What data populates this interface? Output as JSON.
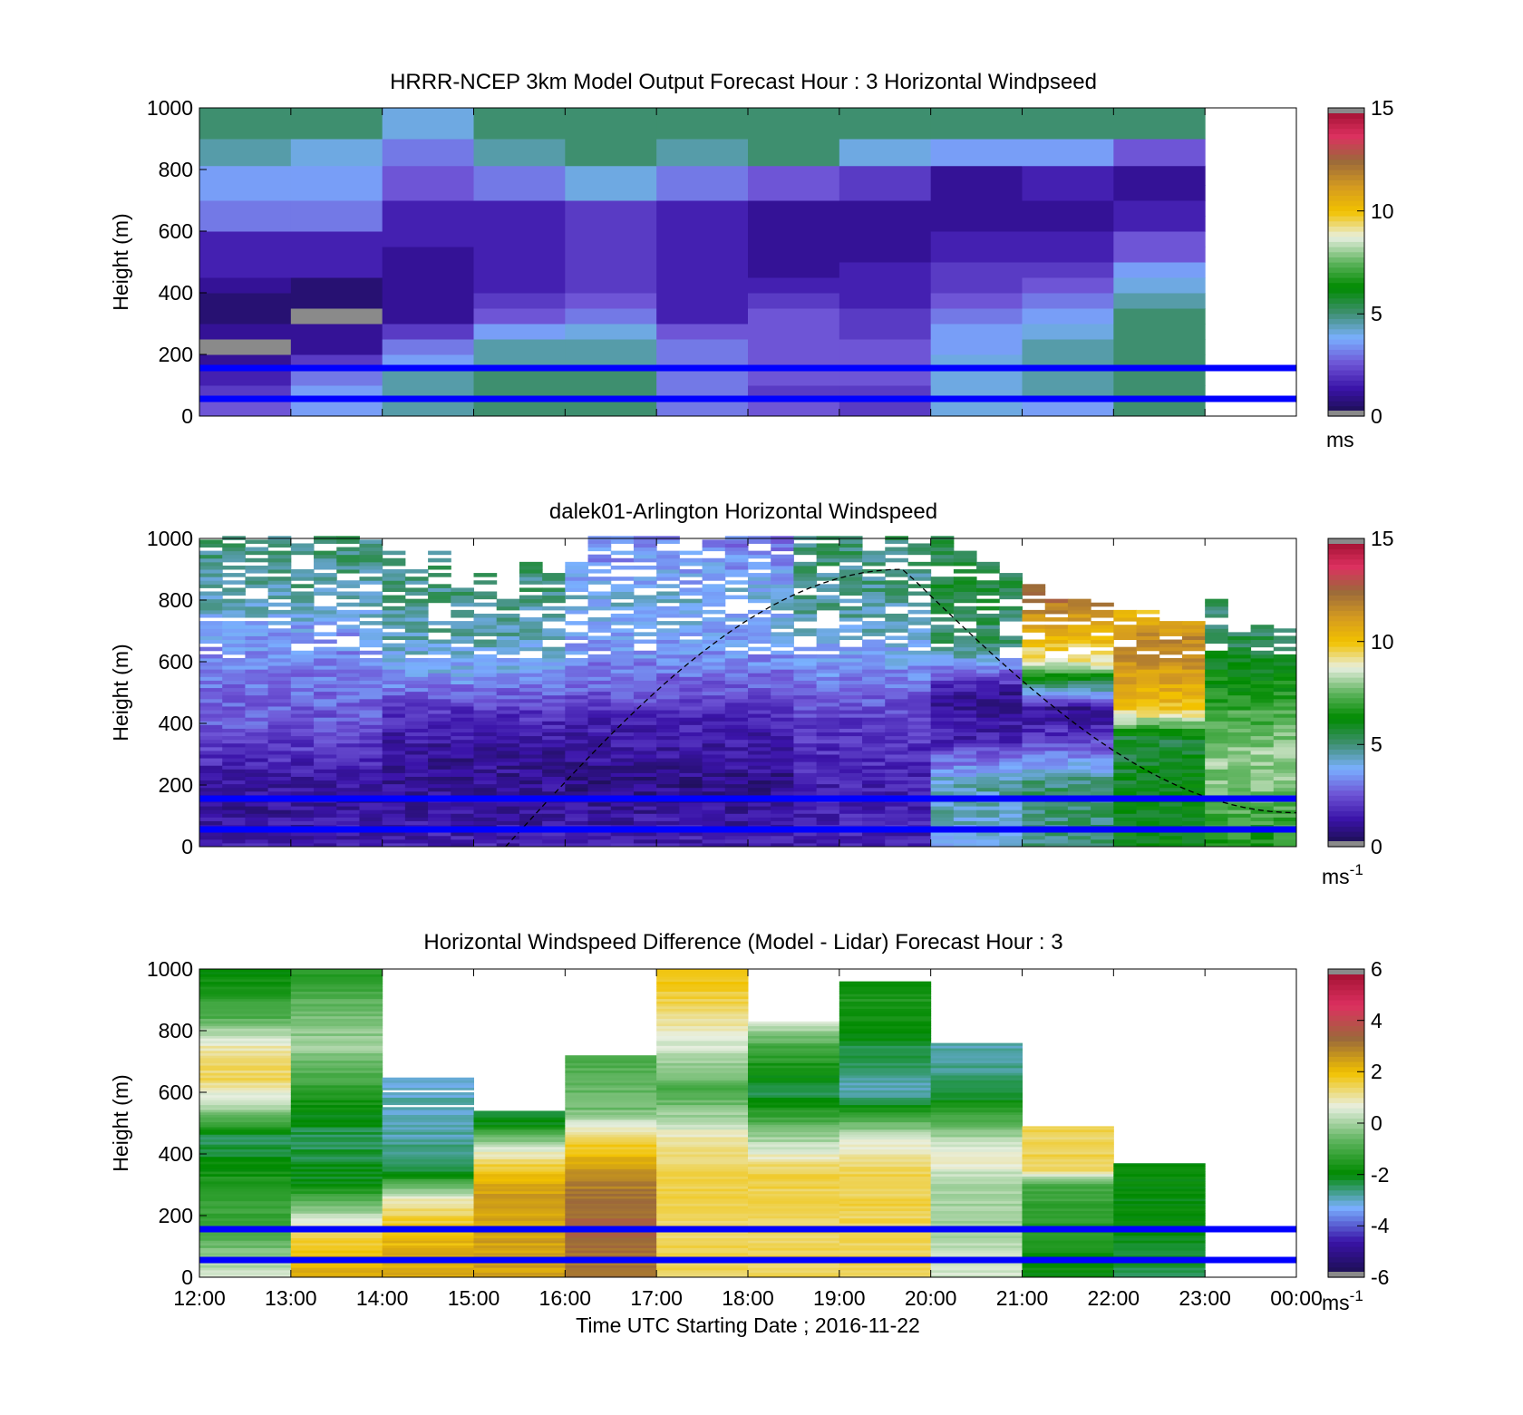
{
  "chart_data": [
    {
      "type": "heatmap",
      "title": "HRRR-NCEP 3km Model Output   Forecast Hour : 3 Horizontal Windpseed",
      "xlabel": "",
      "ylabel": "Height (m)",
      "ylim": [
        0,
        1000
      ],
      "yticks": [
        "0",
        "200",
        "400",
        "600",
        "800",
        "1000"
      ],
      "xlim": [
        12,
        24
      ],
      "x_start": [
        12,
        13,
        14,
        15,
        16,
        17,
        18,
        19,
        20,
        21,
        22
      ],
      "x_width": 1,
      "y_levels": [
        25,
        75,
        125,
        175,
        225,
        275,
        325,
        375,
        425,
        475,
        525,
        575,
        625,
        675,
        725,
        775,
        850,
        950
      ],
      "values": [
        [
          2.5,
          3.5,
          4.5,
          5.0,
          5.0,
          3.0,
          2.5,
          2.0,
          4.0,
          3.5,
          5.0
        ],
        [
          2.0,
          3.5,
          4.5,
          5.0,
          5.0,
          3.0,
          2.0,
          2.0,
          4.0,
          4.5,
          5.0
        ],
        [
          1.5,
          3.0,
          4.5,
          5.0,
          5.0,
          3.0,
          2.5,
          2.5,
          4.0,
          4.5,
          5.0
        ],
        [
          1.0,
          2.0,
          3.5,
          4.5,
          4.5,
          3.0,
          2.5,
          2.5,
          4.0,
          4.5,
          5.0
        ],
        [
          0.0,
          1.0,
          3.0,
          4.5,
          4.5,
          3.0,
          2.5,
          2.5,
          3.5,
          4.5,
          5.0
        ],
        [
          1.0,
          1.0,
          2.0,
          3.5,
          4.0,
          2.5,
          2.5,
          2.0,
          3.5,
          4.0,
          5.0
        ],
        [
          0.5,
          0.0,
          1.0,
          2.5,
          3.0,
          1.5,
          2.5,
          2.0,
          3.0,
          3.5,
          5.0
        ],
        [
          0.5,
          0.5,
          1.0,
          2.0,
          2.5,
          1.5,
          2.0,
          1.5,
          2.5,
          3.0,
          4.5
        ],
        [
          1.0,
          0.5,
          1.0,
          1.5,
          2.0,
          1.5,
          1.5,
          1.5,
          2.0,
          2.5,
          4.0
        ],
        [
          1.5,
          1.5,
          1.0,
          1.5,
          2.0,
          1.5,
          1.0,
          1.5,
          2.0,
          2.0,
          3.5
        ],
        [
          1.5,
          1.5,
          1.0,
          1.5,
          2.0,
          1.5,
          1.0,
          1.0,
          1.5,
          1.5,
          2.5
        ],
        [
          1.5,
          1.5,
          1.5,
          1.5,
          2.0,
          1.5,
          1.0,
          1.0,
          1.5,
          1.5,
          2.5
        ],
        [
          3.0,
          3.0,
          1.5,
          1.5,
          2.0,
          1.5,
          1.0,
          1.0,
          1.0,
          1.0,
          1.5
        ],
        [
          3.0,
          3.0,
          1.5,
          1.5,
          2.0,
          1.5,
          1.0,
          1.0,
          1.0,
          1.0,
          1.5
        ],
        [
          3.5,
          3.5,
          2.5,
          3.0,
          4.0,
          3.0,
          2.5,
          2.0,
          1.0,
          1.5,
          1.0
        ],
        [
          3.5,
          3.5,
          2.5,
          3.0,
          4.0,
          3.0,
          2.5,
          2.0,
          1.0,
          1.5,
          1.0
        ],
        [
          4.5,
          4.0,
          3.0,
          4.5,
          5.0,
          4.5,
          5.0,
          4.0,
          3.5,
          3.5,
          2.5
        ],
        [
          5.0,
          5.0,
          4.0,
          5.0,
          5.0,
          5.0,
          5.0,
          5.0,
          5.0,
          5.0,
          5.0
        ]
      ],
      "colorbar": {
        "min": 0,
        "max": 15,
        "ticks": [
          "0",
          "5",
          "10",
          "15"
        ],
        "label": "ms"
      },
      "hlines": [
        50,
        150
      ],
      "hline_color": "#0000ff",
      "grid": false
    },
    {
      "type": "heatmap",
      "title": "dalek01-Arlington  Horizontal Windspeed",
      "xlabel": "",
      "ylabel": "Height (m)",
      "ylim": [
        0,
        1000
      ],
      "yticks": [
        "0",
        "200",
        "400",
        "600",
        "800",
        "1000"
      ],
      "xlim": [
        12,
        24
      ],
      "columns": 48,
      "x_step_hours": 0.25,
      "bands": [
        {
          "x": [
            12.0,
            14.0
          ],
          "profile": [
            [
              0,
              1.5
            ],
            [
              150,
              1.0
            ],
            [
              250,
              1.5
            ],
            [
              400,
              2.5
            ],
            [
              550,
              3.0
            ],
            [
              700,
              3.5
            ],
            [
              800,
              4.5
            ],
            [
              1000,
              5.0
            ]
          ]
        },
        {
          "x": [
            14.0,
            16.0
          ],
          "profile": [
            [
              0,
              1.5
            ],
            [
              150,
              1.0
            ],
            [
              300,
              1.0
            ],
            [
              450,
              2.0
            ],
            [
              550,
              3.5
            ],
            [
              700,
              4.5
            ],
            [
              900,
              5.0
            ]
          ]
        },
        {
          "x": [
            16.0,
            18.5
          ],
          "profile": [
            [
              0,
              1.5
            ],
            [
              200,
              0.8
            ],
            [
              400,
              1.5
            ],
            [
              500,
              2.5
            ],
            [
              650,
              3.5
            ],
            [
              800,
              4.0
            ],
            [
              1000,
              3.0
            ]
          ]
        },
        {
          "x": [
            18.5,
            20.0
          ],
          "profile": [
            [
              0,
              1.5
            ],
            [
              200,
              1.5
            ],
            [
              400,
              2.0
            ],
            [
              600,
              3.5
            ],
            [
              750,
              4.5
            ],
            [
              950,
              5.0
            ]
          ]
        },
        {
          "x": [
            20.0,
            21.0
          ],
          "profile": [
            [
              0,
              4.0
            ],
            [
              200,
              4.5
            ],
            [
              350,
              1.5
            ],
            [
              500,
              1.0
            ],
            [
              650,
              5.0
            ],
            [
              850,
              5.5
            ]
          ]
        },
        {
          "x": [
            21.0,
            22.0
          ],
          "profile": [
            [
              0,
              5.0
            ],
            [
              200,
              5.0
            ],
            [
              350,
              2.0
            ],
            [
              450,
              1.0
            ],
            [
              600,
              9.0
            ],
            [
              850,
              13.0
            ]
          ]
        },
        {
          "x": [
            22.0,
            23.0
          ],
          "profile": [
            [
              0,
              6.0
            ],
            [
              200,
              6.0
            ],
            [
              350,
              5.5
            ],
            [
              450,
              10.0
            ],
            [
              650,
              12.0
            ],
            [
              850,
              9.0
            ]
          ]
        },
        {
          "x": [
            23.0,
            23.8
          ],
          "profile": [
            [
              0,
              6.5
            ],
            [
              150,
              7.5
            ],
            [
              300,
              8.0
            ],
            [
              450,
              7.0
            ],
            [
              650,
              5.5
            ],
            [
              800,
              5.0
            ]
          ]
        }
      ],
      "column_tops": [
        1000,
        1000,
        1000,
        1000,
        1000,
        1000,
        1000,
        1000,
        950,
        900,
        950,
        850,
        880,
        800,
        920,
        900,
        920,
        1000,
        1000,
        1000,
        1000,
        950,
        1000,
        1000,
        1000,
        1000,
        1000,
        1000,
        1000,
        950,
        1000,
        980,
        1000,
        960,
        920,
        880,
        850,
        820,
        800,
        790,
        780,
        760,
        750,
        730,
        800,
        700,
        720,
        700
      ],
      "arc": {
        "x": [
          15.35,
          19.7,
          24.0
        ],
        "y": [
          0,
          900,
          110
        ],
        "style": "dashed"
      },
      "colorbar": {
        "min": 0,
        "max": 15,
        "ticks": [
          "0",
          "5",
          "10",
          "15"
        ],
        "label": "ms",
        "label_sup": "-1"
      },
      "hlines": [
        50,
        150
      ],
      "hline_color": "#0000ff",
      "grid": false
    },
    {
      "type": "heatmap",
      "title": "Horizontal Windspeed Difference (Model - Lidar) Forecast Hour : 3",
      "xlabel": "Time UTC  Starting Date ; 2016-11-22",
      "ylabel": "Height (m)",
      "ylim": [
        0,
        1000
      ],
      "yticks": [
        "0",
        "200",
        "400",
        "600",
        "800",
        "1000"
      ],
      "xlim": [
        12,
        24
      ],
      "xticks": [
        "12:00",
        "13:00",
        "14:00",
        "15:00",
        "16:00",
        "17:00",
        "18:00",
        "19:00",
        "20:00",
        "21:00",
        "22:00",
        "23:00",
        "00:00"
      ],
      "x_start": [
        12,
        13,
        14,
        15,
        16,
        17,
        18,
        19,
        20,
        21,
        22
      ],
      "x_width": 1,
      "column_tops": [
        1000,
        1000,
        660,
        540,
        720,
        1000,
        830,
        960,
        760,
        490,
        370
      ],
      "profiles": [
        [
          [
            0,
            0.5
          ],
          [
            150,
            -1.0
          ],
          [
            300,
            -1.5
          ],
          [
            450,
            -2.5
          ],
          [
            550,
            0.0
          ],
          [
            650,
            1.5
          ],
          [
            750,
            1.0
          ],
          [
            850,
            -1.0
          ],
          [
            1000,
            -2.0
          ]
        ],
        [
          [
            0,
            2.5
          ],
          [
            150,
            1.5
          ],
          [
            300,
            -2.0
          ],
          [
            450,
            -2.5
          ],
          [
            600,
            -1.5
          ],
          [
            750,
            0.0
          ],
          [
            850,
            -0.5
          ],
          [
            1000,
            -1.5
          ]
        ],
        [
          [
            0,
            2.5
          ],
          [
            150,
            2.0
          ],
          [
            250,
            1.0
          ],
          [
            350,
            -2.5
          ],
          [
            500,
            -3.0
          ],
          [
            660,
            -3.0
          ]
        ],
        [
          [
            0,
            2.5
          ],
          [
            150,
            2.5
          ],
          [
            300,
            2.5
          ],
          [
            400,
            1.0
          ],
          [
            500,
            -2.0
          ],
          [
            540,
            -2.5
          ]
        ],
        [
          [
            0,
            3.0
          ],
          [
            150,
            3.5
          ],
          [
            300,
            3.0
          ],
          [
            450,
            1.5
          ],
          [
            550,
            -0.5
          ],
          [
            720,
            -1.0
          ]
        ],
        [
          [
            0,
            1.5
          ],
          [
            200,
            1.5
          ],
          [
            350,
            1.5
          ],
          [
            450,
            1.0
          ],
          [
            600,
            -1.0
          ],
          [
            750,
            0.5
          ],
          [
            900,
            1.5
          ],
          [
            1000,
            2.0
          ]
        ],
        [
          [
            0,
            1.5
          ],
          [
            200,
            1.5
          ],
          [
            350,
            1.5
          ],
          [
            450,
            0.0
          ],
          [
            600,
            -2.5
          ],
          [
            750,
            -1.0
          ],
          [
            830,
            0.5
          ]
        ],
        [
          [
            0,
            1.5
          ],
          [
            150,
            1.5
          ],
          [
            350,
            1.5
          ],
          [
            450,
            0.5
          ],
          [
            600,
            -3.0
          ],
          [
            800,
            -2.0
          ],
          [
            900,
            -1.5
          ],
          [
            960,
            -2.0
          ]
        ],
        [
          [
            0,
            0.5
          ],
          [
            150,
            0.0
          ],
          [
            300,
            0.0
          ],
          [
            400,
            1.0
          ],
          [
            600,
            -2.5
          ],
          [
            760,
            -3.0
          ]
        ],
        [
          [
            0,
            -2.0
          ],
          [
            150,
            -1.5
          ],
          [
            300,
            -1.0
          ],
          [
            350,
            1.5
          ],
          [
            490,
            1.5
          ]
        ],
        [
          [
            0,
            -2.5
          ],
          [
            150,
            -2.0
          ],
          [
            300,
            -2.0
          ],
          [
            370,
            -2.0
          ]
        ]
      ],
      "colorbar": {
        "min": -6,
        "max": 6,
        "ticks": [
          "-6",
          "-4",
          "-2",
          "0",
          "2",
          "4",
          "6"
        ],
        "label": "ms",
        "label_sup": "-1"
      },
      "hlines": [
        50,
        150
      ],
      "hline_color": "#0000ff",
      "grid": false
    }
  ],
  "colormap": {
    "speed": [
      "#1b0f4e",
      "#3a13a8",
      "#6e55d6",
      "#7ab0ff",
      "#3e8f6f",
      "#008a00",
      "#5fb45f",
      "#e8efe0",
      "#f2c200",
      "#d49a20",
      "#9b6a3a",
      "#dc3060",
      "#a01030"
    ],
    "diff": [
      "#1b0f4e",
      "#3a13a8",
      "#7ab0ff",
      "#008a00",
      "#5fb45f",
      "#e8efe0",
      "#f2c200",
      "#9b6a3a",
      "#dc3060",
      "#a01030"
    ],
    "out_of_range": "#8a8a8a"
  }
}
